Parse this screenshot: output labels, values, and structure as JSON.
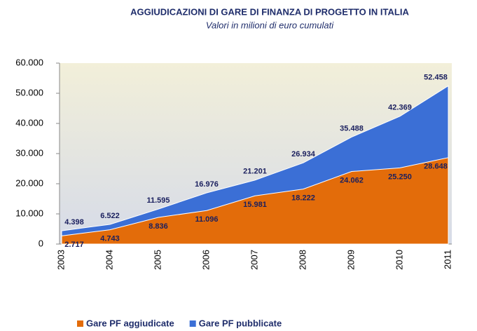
{
  "chart_data": {
    "type": "area",
    "title": "AGGIUDICAZIONI  DI GARE DI FINANZA DI PROGETTO  IN ITALIA",
    "subtitle": "Valori in milioni di euro cumulati",
    "categories": [
      "2003",
      "2004",
      "2005",
      "2006",
      "2007",
      "2008",
      "2009",
      "2010",
      "2011"
    ],
    "series": [
      {
        "name": "Gare PF pubblicate",
        "color": "#3b6fd6",
        "values": [
          4398,
          6522,
          11595,
          16976,
          21201,
          26934,
          35488,
          42369,
          52458
        ],
        "value_labels": [
          "4.398",
          "6.522",
          "11.595",
          "16.976",
          "21.201",
          "26.934",
          "35.488",
          "42.369",
          "52.458"
        ]
      },
      {
        "name": "Gare PF aggiudicate",
        "color": "#e36c0a",
        "values": [
          2717,
          4743,
          8836,
          11096,
          15981,
          18222,
          24062,
          25250,
          28648
        ],
        "value_labels": [
          "2.717",
          "4.743",
          "8.836",
          "11.096",
          "15.981",
          "18.222",
          "24.062",
          "25.250",
          "28.648"
        ]
      }
    ],
    "ylim": [
      0,
      60000
    ],
    "yticks": [
      0,
      {
        "value": 10000,
        "label": "10.000"
      },
      {
        "value": 20000,
        "label": "20.000"
      },
      {
        "value": 30000,
        "label": "30.000"
      },
      {
        "value": 40000,
        "label": "40.000"
      },
      {
        "value": 50000,
        "label": "50.000"
      },
      {
        "value": 60000,
        "label": "60.000"
      }
    ],
    "grid": false,
    "legend": "bottom"
  }
}
